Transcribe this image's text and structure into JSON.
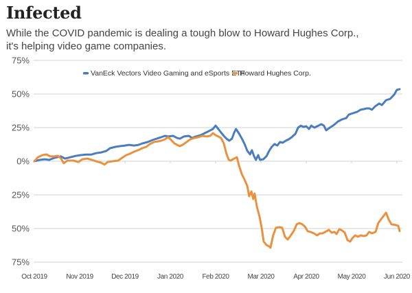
{
  "header": {
    "title": "Infected",
    "subtitle_line1": "While the COVID pandemic is dealing a tough blow to Howard Hughes Corp.,",
    "subtitle_line2": "it's helping video game companies."
  },
  "chart_data": {
    "type": "line",
    "title": "Infected",
    "subtitle": "While the COVID pandemic is dealing a tough blow to Howard Hughes Corp., it's helping video game companies.",
    "xlabel": "",
    "ylabel": "",
    "x_unit": "months since Oct 2019",
    "xlim": [
      0,
      8
    ],
    "ylim": [
      -75,
      75
    ],
    "grid": true,
    "legend_position": "top-center",
    "x_ticks": [
      {
        "value": 0,
        "label": "Oct 2019"
      },
      {
        "value": 1,
        "label": "Nov 2019"
      },
      {
        "value": 2,
        "label": "Dec 2019"
      },
      {
        "value": 3,
        "label": "Jan 2020"
      },
      {
        "value": 4,
        "label": "Feb 2020"
      },
      {
        "value": 5,
        "label": "Mar 2020"
      },
      {
        "value": 6,
        "label": "Apr 2020"
      },
      {
        "value": 7,
        "label": "May 2020"
      },
      {
        "value": 8,
        "label": "Jun 2020"
      }
    ],
    "y_ticks": [
      {
        "value": 75,
        "label": "75%"
      },
      {
        "value": 50,
        "label": "50%"
      },
      {
        "value": 25,
        "label": "25%"
      },
      {
        "value": 0,
        "label": "0%"
      },
      {
        "value": -25,
        "label": "25%"
      },
      {
        "value": -50,
        "label": "50%"
      },
      {
        "value": -75,
        "label": "75%"
      }
    ],
    "series": [
      {
        "name": "VanEck Vectors Video Gaming and eSports ETF",
        "color": "#4a7cbf",
        "points": [
          [
            0,
            0
          ],
          [
            0.12,
            1
          ],
          [
            0.23,
            1.5
          ],
          [
            0.33,
            1
          ],
          [
            0.45,
            2.6
          ],
          [
            0.58,
            3.6
          ],
          [
            0.68,
            2
          ],
          [
            0.8,
            3
          ],
          [
            0.91,
            4
          ],
          [
            1.03,
            4.6
          ],
          [
            1.14,
            5
          ],
          [
            1.26,
            5
          ],
          [
            1.36,
            6
          ],
          [
            1.48,
            6.6
          ],
          [
            1.59,
            7.7
          ],
          [
            1.67,
            9.7
          ],
          [
            1.79,
            10.7
          ],
          [
            1.89,
            11.2
          ],
          [
            2,
            11.7
          ],
          [
            2.09,
            12.2
          ],
          [
            2.2,
            11.7
          ],
          [
            2.3,
            12.2
          ],
          [
            2.39,
            13.3
          ],
          [
            2.5,
            14.3
          ],
          [
            2.61,
            15.8
          ],
          [
            2.7,
            16.8
          ],
          [
            2.8,
            17.9
          ],
          [
            2.88,
            18.9
          ],
          [
            2.95,
            18.4
          ],
          [
            3.06,
            18.9
          ],
          [
            3.15,
            17.3
          ],
          [
            3.21,
            16.8
          ],
          [
            3.3,
            18.4
          ],
          [
            3.41,
            18.9
          ],
          [
            3.48,
            17.3
          ],
          [
            3.56,
            18.4
          ],
          [
            3.67,
            19.4
          ],
          [
            3.76,
            20.9
          ],
          [
            3.85,
            22.4
          ],
          [
            3.94,
            24
          ],
          [
            4,
            26.5
          ],
          [
            4.06,
            24
          ],
          [
            4.12,
            21.4
          ],
          [
            4.18,
            18.9
          ],
          [
            4.24,
            16.8
          ],
          [
            4.3,
            15.3
          ],
          [
            4.36,
            16.8
          ],
          [
            4.41,
            21.4
          ],
          [
            4.45,
            24
          ],
          [
            4.52,
            20.4
          ],
          [
            4.58,
            16.8
          ],
          [
            4.64,
            12.8
          ],
          [
            4.7,
            7.7
          ],
          [
            4.76,
            5.1
          ],
          [
            4.8,
            8.2
          ],
          [
            4.85,
            3.6
          ],
          [
            4.89,
            1
          ],
          [
            4.94,
            4.6
          ],
          [
            4.98,
            1
          ],
          [
            5.05,
            1.5
          ],
          [
            5.12,
            3.6
          ],
          [
            5.18,
            7.7
          ],
          [
            5.24,
            10.7
          ],
          [
            5.3,
            12.8
          ],
          [
            5.36,
            11.7
          ],
          [
            5.42,
            14.3
          ],
          [
            5.48,
            13.8
          ],
          [
            5.55,
            15.3
          ],
          [
            5.61,
            16.3
          ],
          [
            5.68,
            17.9
          ],
          [
            5.76,
            20.4
          ],
          [
            5.82,
            25
          ],
          [
            5.88,
            26.5
          ],
          [
            5.94,
            25.5
          ],
          [
            6,
            26
          ],
          [
            6.06,
            24
          ],
          [
            6.11,
            26.5
          ],
          [
            6.18,
            25
          ],
          [
            6.27,
            26.5
          ],
          [
            6.33,
            27.6
          ],
          [
            6.39,
            26.5
          ],
          [
            6.44,
            23
          ],
          [
            6.52,
            25
          ],
          [
            6.61,
            27
          ],
          [
            6.7,
            29.6
          ],
          [
            6.79,
            31.1
          ],
          [
            6.88,
            32.1
          ],
          [
            6.94,
            34.7
          ],
          [
            7.03,
            35.7
          ],
          [
            7.12,
            36.7
          ],
          [
            7.2,
            38.3
          ],
          [
            7.27,
            38.8
          ],
          [
            7.33,
            39.3
          ],
          [
            7.39,
            39.3
          ],
          [
            7.45,
            38.3
          ],
          [
            7.52,
            40.8
          ],
          [
            7.61,
            42.9
          ],
          [
            7.67,
            41.8
          ],
          [
            7.76,
            45.4
          ],
          [
            7.85,
            46.4
          ],
          [
            7.94,
            49.5
          ],
          [
            8,
            53.1
          ],
          [
            8.06,
            53.6
          ]
        ]
      },
      {
        "name": "Howard Hughes Corp.",
        "color": "#e8913f",
        "points": [
          [
            0,
            0
          ],
          [
            0.08,
            3
          ],
          [
            0.18,
            4.6
          ],
          [
            0.27,
            5.1
          ],
          [
            0.35,
            3.6
          ],
          [
            0.44,
            3.6
          ],
          [
            0.52,
            4.1
          ],
          [
            0.59,
            2
          ],
          [
            0.65,
            -1.5
          ],
          [
            0.73,
            0.5
          ],
          [
            0.86,
            0.5
          ],
          [
            0.97,
            -0.5
          ],
          [
            1.06,
            1.5
          ],
          [
            1.17,
            2
          ],
          [
            1.27,
            1
          ],
          [
            1.36,
            0
          ],
          [
            1.47,
            -1
          ],
          [
            1.55,
            -2.5
          ],
          [
            1.62,
            -0.5
          ],
          [
            1.73,
            0
          ],
          [
            1.85,
            0.5
          ],
          [
            1.94,
            2.6
          ],
          [
            2.03,
            4.6
          ],
          [
            2.11,
            5.6
          ],
          [
            2.2,
            7.1
          ],
          [
            2.29,
            8.2
          ],
          [
            2.38,
            9.7
          ],
          [
            2.47,
            10.7
          ],
          [
            2.55,
            12.8
          ],
          [
            2.64,
            14.3
          ],
          [
            2.73,
            14.8
          ],
          [
            2.8,
            15.3
          ],
          [
            2.88,
            16.3
          ],
          [
            2.95,
            17.9
          ],
          [
            3.02,
            15.8
          ],
          [
            3.09,
            13.3
          ],
          [
            3.15,
            12.2
          ],
          [
            3.21,
            11.2
          ],
          [
            3.27,
            12.2
          ],
          [
            3.36,
            14.3
          ],
          [
            3.44,
            16.3
          ],
          [
            3.53,
            17.3
          ],
          [
            3.62,
            17.9
          ],
          [
            3.71,
            18.9
          ],
          [
            3.8,
            18.4
          ],
          [
            3.88,
            18.9
          ],
          [
            3.94,
            20.9
          ],
          [
            4,
            19.4
          ],
          [
            4.06,
            18.4
          ],
          [
            4.12,
            17.3
          ],
          [
            4.18,
            13.3
          ],
          [
            4.24,
            5.6
          ],
          [
            4.29,
            1
          ],
          [
            4.33,
            0.5
          ],
          [
            4.41,
            2
          ],
          [
            4.47,
            3
          ],
          [
            4.52,
            -3.6
          ],
          [
            4.58,
            -9.7
          ],
          [
            4.64,
            -13.8
          ],
          [
            4.7,
            -18.4
          ],
          [
            4.74,
            -26
          ],
          [
            4.79,
            -22.4
          ],
          [
            4.83,
            -28.1
          ],
          [
            4.86,
            -24
          ],
          [
            4.91,
            -33.7
          ],
          [
            4.97,
            -41.3
          ],
          [
            5.02,
            -50
          ],
          [
            5.06,
            -59.7
          ],
          [
            5.12,
            -62.2
          ],
          [
            5.18,
            -63.3
          ],
          [
            5.21,
            -64.3
          ],
          [
            5.27,
            -55.1
          ],
          [
            5.33,
            -49.5
          ],
          [
            5.41,
            -49
          ],
          [
            5.47,
            -49.5
          ],
          [
            5.53,
            -56.1
          ],
          [
            5.59,
            -58.2
          ],
          [
            5.65,
            -55.6
          ],
          [
            5.73,
            -51.5
          ],
          [
            5.79,
            -46.9
          ],
          [
            5.85,
            -45.9
          ],
          [
            5.91,
            -46.9
          ],
          [
            5.97,
            -48.5
          ],
          [
            6.03,
            -52
          ],
          [
            6.09,
            -52.5
          ],
          [
            6.17,
            -53.6
          ],
          [
            6.24,
            -55.1
          ],
          [
            6.3,
            -53.6
          ],
          [
            6.36,
            -53.6
          ],
          [
            6.42,
            -52.5
          ],
          [
            6.5,
            -51
          ],
          [
            6.56,
            -53.1
          ],
          [
            6.62,
            -52.5
          ],
          [
            6.67,
            -54.1
          ],
          [
            6.73,
            -50.5
          ],
          [
            6.79,
            -51.5
          ],
          [
            6.85,
            -53.1
          ],
          [
            6.91,
            -58.7
          ],
          [
            6.97,
            -59.7
          ],
          [
            7.02,
            -57.1
          ],
          [
            7.08,
            -55.1
          ],
          [
            7.14,
            -56.1
          ],
          [
            7.2,
            -55.1
          ],
          [
            7.27,
            -55.6
          ],
          [
            7.33,
            -55.1
          ],
          [
            7.39,
            -52.5
          ],
          [
            7.45,
            -53.6
          ],
          [
            7.53,
            -52.5
          ],
          [
            7.59,
            -45.9
          ],
          [
            7.67,
            -42.3
          ],
          [
            7.76,
            -38.3
          ],
          [
            7.82,
            -43.4
          ],
          [
            7.88,
            -46.9
          ],
          [
            7.97,
            -47.4
          ],
          [
            8.03,
            -48
          ],
          [
            8.06,
            -52
          ]
        ]
      }
    ]
  }
}
